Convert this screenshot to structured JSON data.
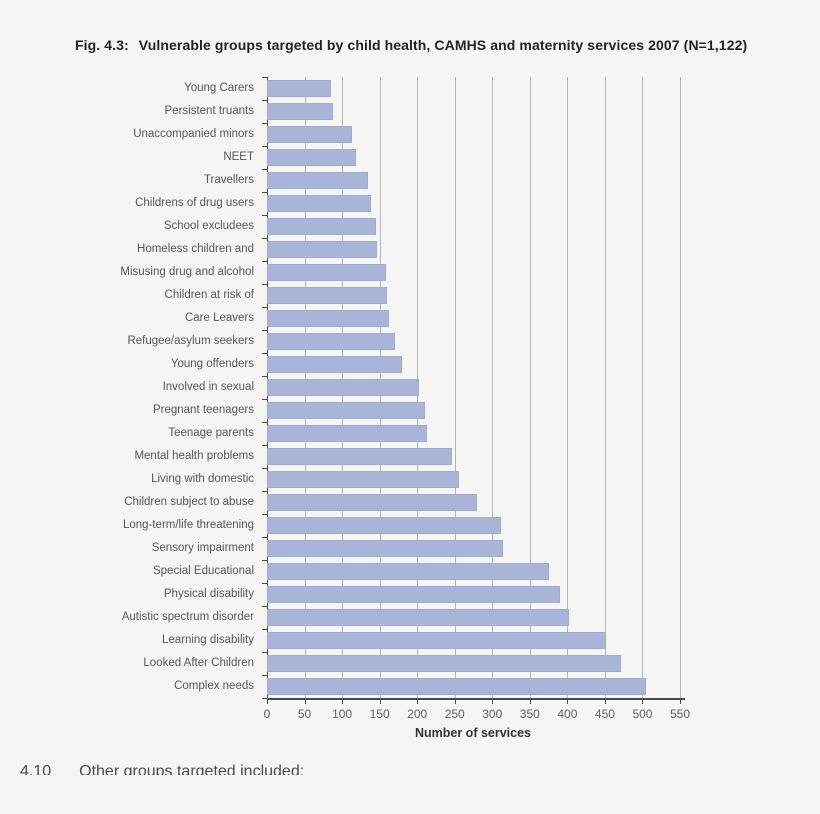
{
  "figure": {
    "title_prefix": "Fig. 4.3:",
    "title_text": "Vulnerable groups targeted by child health, CAMHS and maternity services 2007 (N=1,122)",
    "footer_number": "4.10",
    "footer_text": "Other groups targeted included:",
    "background_color": "#f5f5f3"
  },
  "chart_data": {
    "type": "bar",
    "orientation": "horizontal",
    "title": "Fig. 4.3: Vulnerable groups targeted by child health, CAMHS and maternity services 2007 (N=1,122)",
    "xlabel": "Number of services",
    "ylabel": "",
    "xlim": [
      0,
      550
    ],
    "xticks": [
      0,
      50,
      100,
      150,
      200,
      250,
      300,
      350,
      400,
      450,
      500,
      550
    ],
    "grid": true,
    "legend": false,
    "bar_color": "#a9b5d8",
    "categories": [
      "Young Carers",
      "Persistent truants",
      "Unaccompanied minors",
      "NEET",
      "Travellers",
      "Childrens of drug users",
      "School excludees",
      "Homeless children and",
      "Misusing drug and alcohol",
      "Children at risk of",
      "Care Leavers",
      "Refugee/asylum seekers",
      "Young offenders",
      "Involved in sexual",
      "Pregnant teenagers",
      "Teenage parents",
      "Mental health problems",
      "Living with domestic",
      "Children subject to abuse",
      "Long-term/life threatening",
      "Sensory impairment",
      "Special Educational",
      "Physical disability",
      "Autistic spectrum disorder",
      "Learning disability",
      "Looked After Children",
      "Complex needs"
    ],
    "values": [
      85,
      88,
      113,
      118,
      135,
      138,
      145,
      146,
      158,
      160,
      162,
      170,
      180,
      203,
      210,
      213,
      246,
      256,
      280,
      311,
      314,
      376,
      390,
      402,
      451,
      472,
      505
    ]
  }
}
